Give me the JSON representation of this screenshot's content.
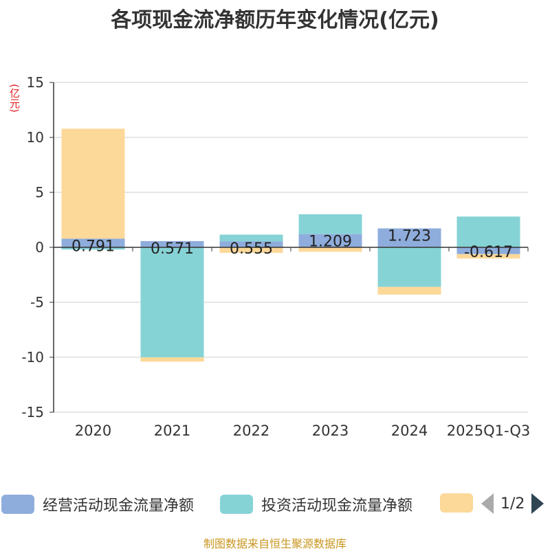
{
  "title": "各项现金流净额历年变化情况(亿元)",
  "unit_label": "(亿元)",
  "source": "制图数据来自恒生聚源数据库",
  "legend": {
    "items": [
      {
        "label": "经营活动现金流量净额",
        "color": "#8eaddc"
      },
      {
        "label": "投资活动现金流量净额",
        "color": "#86d3d6"
      },
      {
        "label": "",
        "color": "#fcd899"
      }
    ],
    "page": "1/2"
  },
  "chart_data": {
    "type": "bar",
    "stacked": true,
    "categories": [
      "2020",
      "2021",
      "2022",
      "2023",
      "2024",
      "2025Q1-Q3"
    ],
    "series": [
      {
        "name": "经营活动现金流量净额",
        "color": "#8eaddc",
        "values": [
          0.791,
          0.571,
          0.555,
          1.209,
          1.723,
          -0.617
        ],
        "labels": [
          "0.791",
          "0.571",
          "0.555",
          "1.209",
          "1.723",
          "-0.617"
        ]
      },
      {
        "name": "投资活动现金流量净额",
        "color": "#86d3d6",
        "values": [
          -0.2,
          -10.0,
          0.6,
          1.8,
          -3.6,
          2.8
        ]
      },
      {
        "name": "",
        "color": "#fcd899",
        "values": [
          10.0,
          -0.4,
          -0.5,
          -0.4,
          -0.7,
          -0.4
        ]
      }
    ],
    "ylim": [
      -15,
      15
    ],
    "yticks": [
      15,
      10,
      5,
      0,
      -5,
      -10,
      -15
    ],
    "ytick_labels": [
      "15",
      "10",
      "5",
      "0",
      "-5",
      "-10",
      "-15"
    ],
    "grid": true
  }
}
